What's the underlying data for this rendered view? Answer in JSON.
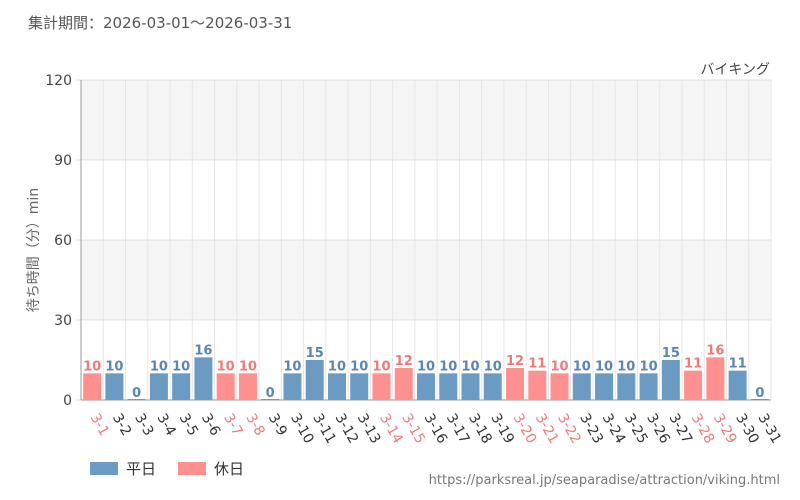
{
  "period_label": "集計期間：2026-03-01～2026-03-31",
  "source_url": "https://parksreal.jp/seaparadise/attraction/viking.html",
  "colors": {
    "weekday": "#6b9bc3",
    "holiday": "#ff9090",
    "weekday_label": "#5a86b0",
    "holiday_label": "#f07a7a",
    "tick_weekday": "#333333",
    "tick_holiday": "#f07a7a"
  },
  "legend": [
    {
      "key": "weekday",
      "label": "平日"
    },
    {
      "key": "holiday",
      "label": "休日"
    }
  ],
  "chart_data": {
    "type": "bar",
    "title": "バイキング",
    "ylabel": "待ち時間（分）min",
    "xlabel": "",
    "ylim": [
      0,
      120
    ],
    "yticks": [
      0,
      30,
      60,
      90,
      120
    ],
    "grid": true,
    "legend_position": "bottom-left",
    "categories": [
      "3-1",
      "3-2",
      "3-3",
      "3-4",
      "3-5",
      "3-6",
      "3-7",
      "3-8",
      "3-9",
      "3-10",
      "3-11",
      "3-12",
      "3-13",
      "3-14",
      "3-15",
      "3-16",
      "3-17",
      "3-18",
      "3-19",
      "3-20",
      "3-21",
      "3-22",
      "3-23",
      "3-24",
      "3-25",
      "3-26",
      "3-27",
      "3-28",
      "3-29",
      "3-30",
      "3-31"
    ],
    "values": [
      10,
      10,
      0,
      10,
      10,
      16,
      10,
      10,
      0,
      10,
      15,
      10,
      10,
      10,
      12,
      10,
      10,
      10,
      10,
      12,
      11,
      10,
      10,
      10,
      10,
      10,
      15,
      11,
      16,
      11,
      0
    ],
    "day_type": [
      "holiday",
      "weekday",
      "weekday",
      "weekday",
      "weekday",
      "weekday",
      "holiday",
      "holiday",
      "weekday",
      "weekday",
      "weekday",
      "weekday",
      "weekday",
      "holiday",
      "holiday",
      "weekday",
      "weekday",
      "weekday",
      "weekday",
      "holiday",
      "holiday",
      "holiday",
      "weekday",
      "weekday",
      "weekday",
      "weekday",
      "weekday",
      "holiday",
      "holiday",
      "weekday",
      "weekday"
    ]
  }
}
